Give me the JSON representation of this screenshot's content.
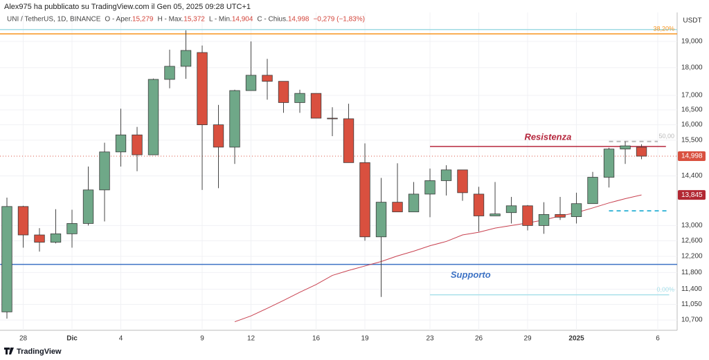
{
  "header": {
    "publisher": "Alex975 ha pubblicato su TradingView.com il Gen 05, 2025 09:28 UTC+1"
  },
  "footer": {
    "brand": "TradingView"
  },
  "chart_data": {
    "type": "candlestick",
    "symbol": "UNI / TetherUS, 1D, BINANCE",
    "ohlc_legend": [
      {
        "key": "O - Aper.",
        "label": "15,279"
      },
      {
        "key": "H - Max.",
        "label": "15,372"
      },
      {
        "key": "L - Min.",
        "label": "14,904"
      },
      {
        "key": "C - Chius.",
        "label": "14,998"
      }
    ],
    "change": "−0,279 (−1,83%)",
    "currency": "USDT",
    "log_scale": true,
    "grid": true,
    "up_color": "#6fa888",
    "down_color": "#d9503f",
    "xlim": [
      -0.4255,
      41.19
    ],
    "ylim": [
      10.475,
      20.17
    ],
    "xticks": [
      {
        "value": 1,
        "label": "28"
      },
      {
        "value": 4,
        "label": "Dic"
      },
      {
        "value": 7,
        "label": "4"
      },
      {
        "value": 12,
        "label": "9"
      },
      {
        "value": 15,
        "label": "12"
      },
      {
        "value": 19,
        "label": "16"
      },
      {
        "value": 22,
        "label": "19"
      },
      {
        "value": 26,
        "label": "23"
      },
      {
        "value": 29,
        "label": "26"
      },
      {
        "value": 32,
        "label": "29"
      },
      {
        "value": 35,
        "label": "2025"
      },
      {
        "value": 40,
        "label": "6"
      }
    ],
    "yticks": [
      {
        "value": 10.7,
        "label": "10,700"
      },
      {
        "value": 11.05,
        "label": "11,050"
      },
      {
        "value": 11.4,
        "label": "11,400"
      },
      {
        "value": 11.8,
        "label": "11,800"
      },
      {
        "value": 12.2,
        "label": "12,200"
      },
      {
        "value": 12.6,
        "label": "12,600"
      },
      {
        "value": 13.0,
        "label": "13,000"
      },
      {
        "value": 14.4,
        "label": "14,400"
      },
      {
        "value": 15.5,
        "label": "15,500"
      },
      {
        "value": 16.0,
        "label": "16,000"
      },
      {
        "value": 16.5,
        "label": "16,500"
      },
      {
        "value": 17.0,
        "label": "17,000"
      },
      {
        "value": 18.0,
        "label": "18,000"
      },
      {
        "value": 19.0,
        "label": "19,000"
      }
    ],
    "open": [
      10.88,
      13.52,
      12.75,
      12.56,
      12.78,
      13.055,
      13.99,
      15.13,
      15.67,
      15.04,
      17.57,
      18.05,
      18.57,
      16.0,
      15.28,
      17.17,
      17.72,
      17.5,
      16.75,
      17.07,
      16.22,
      16.2,
      14.8,
      12.7,
      13.64,
      13.37,
      13.87,
      14.26,
      14.58,
      13.87,
      13.26,
      13.35,
      13.54,
      13.0,
      13.3,
      13.24,
      13.6,
      14.36,
      15.22,
      15.279
    ],
    "high": [
      13.77,
      13.54,
      12.93,
      13.445,
      13.43,
      14.68,
      15.42,
      16.54,
      15.93,
      17.6,
      18.68,
      19.44,
      18.84,
      16.67,
      17.2,
      19.0,
      18.33,
      17.5,
      17.2,
      17.07,
      16.59,
      16.71,
      15.4,
      14.34,
      14.78,
      14.22,
      14.62,
      14.72,
      14.58,
      14.08,
      14.22,
      13.79,
      13.56,
      13.64,
      13.79,
      13.91,
      14.52,
      15.26,
      15.46,
      15.372
    ],
    "low": [
      10.73,
      12.42,
      12.32,
      12.53,
      12.42,
      13.0,
      13.11,
      14.68,
      14.54,
      15.04,
      17.25,
      17.59,
      13.99,
      14.04,
      14.76,
      17.17,
      16.85,
      16.4,
      16.4,
      16.22,
      15.63,
      14.8,
      12.6,
      11.22,
      13.37,
      13.37,
      13.225,
      13.83,
      13.68,
      12.84,
      13.26,
      13.055,
      12.87,
      12.78,
      13.15,
      13.055,
      13.6,
      14.06,
      14.76,
      14.904
    ],
    "close": [
      13.52,
      12.75,
      12.56,
      12.78,
      13.055,
      13.99,
      15.13,
      15.67,
      15.04,
      17.57,
      18.05,
      18.65,
      16.0,
      15.28,
      17.17,
      17.72,
      17.5,
      16.75,
      17.07,
      16.22,
      16.2,
      14.8,
      12.7,
      13.64,
      13.37,
      13.87,
      14.26,
      14.58,
      13.91,
      13.26,
      13.315,
      13.54,
      13.0,
      13.3,
      13.225,
      13.6,
      14.36,
      15.22,
      15.32,
      14.998
    ],
    "moving_average": {
      "color": "#c8404f",
      "values": [
        null,
        null,
        null,
        null,
        null,
        null,
        null,
        null,
        null,
        null,
        null,
        null,
        null,
        null,
        10.66,
        10.79,
        10.96,
        11.14,
        11.33,
        11.51,
        11.73,
        11.85,
        11.96,
        12.07,
        12.21,
        12.33,
        12.47,
        12.58,
        12.75,
        12.82,
        12.93,
        13.0,
        13.07,
        13.15,
        13.26,
        13.35,
        13.48,
        13.62,
        13.74,
        13.845
      ]
    },
    "levels": [
      {
        "value": 19.47,
        "color": "#9fdbe3",
        "from": -0.4255,
        "to": 41.19
      },
      {
        "value": 19.3,
        "color": "#f7941d",
        "from": -0.4255,
        "to": 41.19,
        "label": "38,20%"
      },
      {
        "value": 15.46,
        "color": "#b8b8b8",
        "from": 37,
        "to": 40,
        "dashed": true,
        "label": "50,00"
      },
      {
        "value": 15.3,
        "color": "#b5263c",
        "from": 26,
        "to": 40.5,
        "label": "Resistenza"
      },
      {
        "value": 13.4,
        "color": "#3bb6d8",
        "from": 37,
        "to": 40.7,
        "dashed": true
      },
      {
        "value": 12.0,
        "color": "#3d72c4",
        "from": -0.4255,
        "to": 41.19,
        "label": "Supporto"
      },
      {
        "value": 11.27,
        "color": "#a8e0ea",
        "from": 26,
        "to": 40.7,
        "label": "0,00%"
      }
    ],
    "price_labels": [
      {
        "value": 14.998,
        "label": "14,998",
        "color": "#d9503f"
      },
      {
        "value": 13.845,
        "label": "13,845",
        "color": "#b22833"
      }
    ]
  }
}
